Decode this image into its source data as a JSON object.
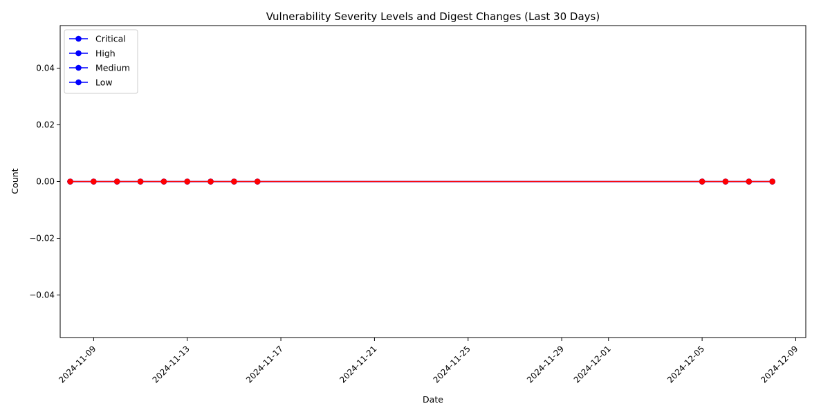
{
  "chart_data": {
    "type": "line",
    "title": "Vulnerability Severity Levels and Digest Changes (Last 30 Days)",
    "xlabel": "Date",
    "ylabel": "Count",
    "ylim": [
      -0.055,
      0.055
    ],
    "xlim": [
      "2024-11-07",
      "2024-12-09"
    ],
    "x_ticks": [
      "2024-11-09",
      "2024-11-13",
      "2024-11-17",
      "2024-11-21",
      "2024-11-25",
      "2024-11-29",
      "2024-12-01",
      "2024-12-05",
      "2024-12-09"
    ],
    "y_ticks": [
      -0.04,
      -0.02,
      0.0,
      0.02,
      0.04
    ],
    "y_tick_labels": [
      "−0.04",
      "−0.02",
      "0.00",
      "0.02",
      "0.04"
    ],
    "x": [
      "2024-11-08",
      "2024-11-09",
      "2024-11-10",
      "2024-11-11",
      "2024-11-12",
      "2024-11-13",
      "2024-11-14",
      "2024-11-15",
      "2024-11-16",
      "2024-12-05",
      "2024-12-06",
      "2024-12-07",
      "2024-12-08"
    ],
    "series": [
      {
        "name": "Critical",
        "color": "#0000ff",
        "values": [
          0,
          0,
          0,
          0,
          0,
          0,
          0,
          0,
          0,
          0,
          0,
          0,
          0
        ]
      },
      {
        "name": "High",
        "color": "#0000ff",
        "values": [
          0,
          0,
          0,
          0,
          0,
          0,
          0,
          0,
          0,
          0,
          0,
          0,
          0
        ]
      },
      {
        "name": "Medium",
        "color": "#0000ff",
        "values": [
          0,
          0,
          0,
          0,
          0,
          0,
          0,
          0,
          0,
          0,
          0,
          0,
          0
        ]
      },
      {
        "name": "Low",
        "color": "#0000ff",
        "values": [
          0,
          0,
          0,
          0,
          0,
          0,
          0,
          0,
          0,
          0,
          0,
          0,
          0
        ]
      },
      {
        "name": "",
        "color": "#ff0000",
        "values": [
          0,
          0,
          0,
          0,
          0,
          0,
          0,
          0,
          0,
          0,
          0,
          0,
          0
        ]
      }
    ],
    "legend_position": "upper-left",
    "legend_entries": [
      "Critical",
      "High",
      "Medium",
      "Low"
    ],
    "grid": false
  }
}
